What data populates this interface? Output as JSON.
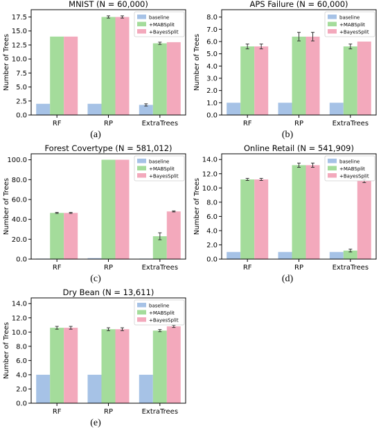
{
  "colors": {
    "baseline": "#a6c2e6",
    "mab": "#a4dc9b",
    "bayes": "#f3a9bc",
    "error": "#333333",
    "axis": "#000000"
  },
  "captions": [
    "(a)",
    "(b)",
    "(c)",
    "(d)",
    "(e)"
  ],
  "chart_data": [
    {
      "type": "bar",
      "title": "MNIST (N = 60,000)",
      "ylabel": "Number of Trees",
      "xlabel": "",
      "categories": [
        "RF",
        "RP",
        "ExtraTrees"
      ],
      "yticks": [
        "0.0",
        "2.5",
        "5.0",
        "7.5",
        "10.0",
        "12.5",
        "15.0",
        "17.5"
      ],
      "ylim": [
        0,
        18.8
      ],
      "legend_position": "top-right",
      "series": [
        {
          "name": "baseline",
          "color_key": "baseline",
          "values": [
            2.0,
            2.0,
            1.8
          ],
          "errors": [
            0,
            0,
            0.2
          ]
        },
        {
          "name": "+MABSplit",
          "color_key": "mab",
          "values": [
            14.0,
            17.5,
            12.8
          ],
          "errors": [
            0,
            0.2,
            0.2
          ]
        },
        {
          "name": "+BayesSplit",
          "color_key": "bayes",
          "values": [
            14.0,
            17.5,
            13.0
          ],
          "errors": [
            0,
            0.2,
            0
          ]
        }
      ]
    },
    {
      "type": "bar",
      "title": "APS Failure (N = 60,000)",
      "ylabel": "Number of Trees",
      "xlabel": "",
      "categories": [
        "RF",
        "RP",
        "ExtraTrees"
      ],
      "yticks": [
        "0.0",
        "1.0",
        "2.0",
        "3.0",
        "4.0",
        "5.0",
        "6.0",
        "7.0",
        "8.0"
      ],
      "ylim": [
        0,
        8.6
      ],
      "legend_position": "top-right",
      "series": [
        {
          "name": "baseline",
          "color_key": "baseline",
          "values": [
            1.0,
            1.0,
            1.0
          ],
          "errors": [
            0,
            0,
            0
          ]
        },
        {
          "name": "+MABSplit",
          "color_key": "mab",
          "values": [
            5.6,
            6.4,
            5.6
          ],
          "errors": [
            0.2,
            0.35,
            0.2
          ]
        },
        {
          "name": "+BayesSplit",
          "color_key": "bayes",
          "values": [
            5.6,
            6.4,
            6.0
          ],
          "errors": [
            0.2,
            0.35,
            0
          ]
        }
      ]
    },
    {
      "type": "bar",
      "title": "Forest Covertype (N = 581,012)",
      "ylabel": "Number of Trees",
      "xlabel": "",
      "categories": [
        "RF",
        "RP",
        "ExtraTrees"
      ],
      "yticks": [
        "0.0",
        "20.0",
        "40.0",
        "60.0",
        "80.0",
        "100.0"
      ],
      "ylim": [
        0,
        106
      ],
      "legend_position": "top-right",
      "series": [
        {
          "name": "baseline",
          "color_key": "baseline",
          "values": [
            0.5,
            1.0,
            0.5
          ],
          "errors": [
            0,
            0,
            0
          ]
        },
        {
          "name": "+MABSplit",
          "color_key": "mab",
          "values": [
            46.5,
            100.0,
            23.0
          ],
          "errors": [
            0.5,
            0,
            3.5
          ]
        },
        {
          "name": "+BayesSplit",
          "color_key": "bayes",
          "values": [
            46.5,
            100.0,
            48.0
          ],
          "errors": [
            0.5,
            0,
            0.5
          ]
        }
      ]
    },
    {
      "type": "bar",
      "title": "Online Retail (N = 541,909)",
      "ylabel": "Number of Trees",
      "xlabel": "",
      "categories": [
        "RF",
        "RP",
        "ExtraTrees"
      ],
      "yticks": [
        "0.0",
        "2.0",
        "4.0",
        "6.0",
        "8.0",
        "10.0",
        "12.0",
        "14.0"
      ],
      "ylim": [
        0,
        14.8
      ],
      "legend_position": "top-right",
      "series": [
        {
          "name": "baseline",
          "color_key": "baseline",
          "values": [
            1.0,
            1.0,
            1.0
          ],
          "errors": [
            0,
            0,
            0
          ]
        },
        {
          "name": "+MABSplit",
          "color_key": "mab",
          "values": [
            11.2,
            13.2,
            1.2
          ],
          "errors": [
            0.15,
            0.3,
            0.2
          ]
        },
        {
          "name": "+BayesSplit",
          "color_key": "bayes",
          "values": [
            11.2,
            13.2,
            11.0
          ],
          "errors": [
            0.15,
            0.3,
            0.25
          ]
        }
      ]
    },
    {
      "type": "bar",
      "title": "Dry Bean (N = 13,611)",
      "ylabel": "Number of Trees",
      "xlabel": "",
      "categories": [
        "RF",
        "RP",
        "ExtraTrees"
      ],
      "yticks": [
        "0.0",
        "2.0",
        "4.0",
        "6.0",
        "8.0",
        "10.0",
        "12.0",
        "14.0"
      ],
      "ylim": [
        0,
        14.8
      ],
      "legend_position": "top-right",
      "series": [
        {
          "name": "baseline",
          "color_key": "baseline",
          "values": [
            4.0,
            4.0,
            4.0
          ],
          "errors": [
            0,
            0,
            0
          ]
        },
        {
          "name": "+MABSplit",
          "color_key": "mab",
          "values": [
            10.6,
            10.4,
            10.2
          ],
          "errors": [
            0.2,
            0.2,
            0.15
          ]
        },
        {
          "name": "+BayesSplit",
          "color_key": "bayes",
          "values": [
            10.6,
            10.4,
            10.8
          ],
          "errors": [
            0.2,
            0.2,
            0.15
          ]
        }
      ]
    }
  ]
}
